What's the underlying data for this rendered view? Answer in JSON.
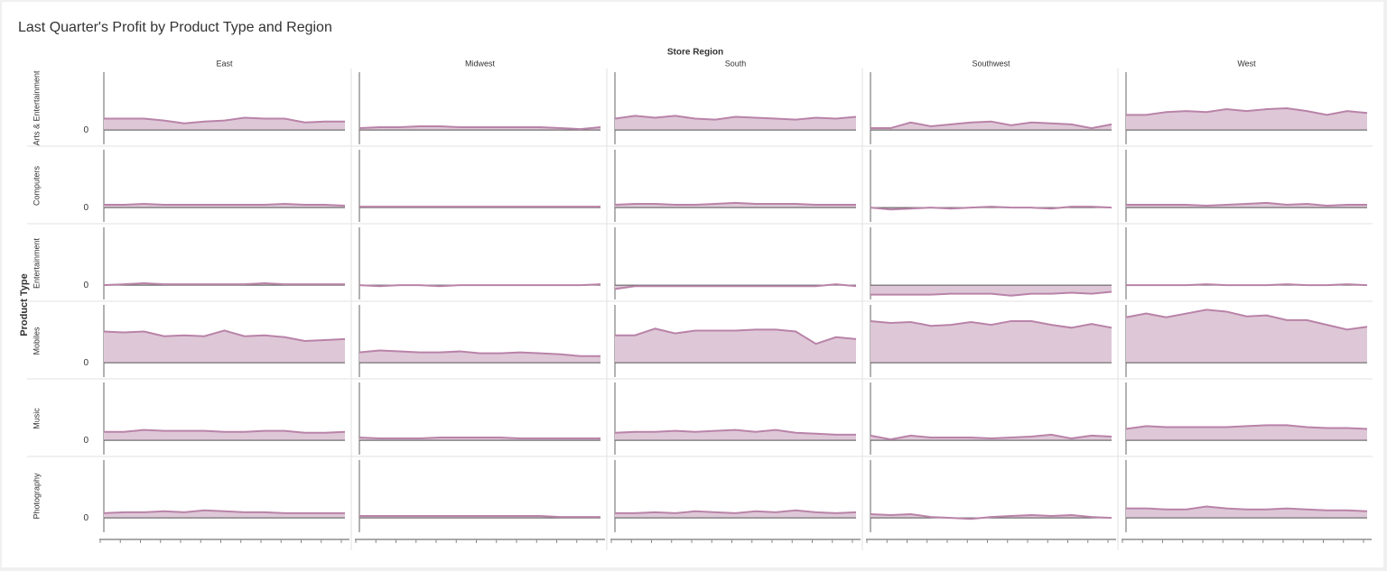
{
  "chart_data": {
    "type": "area",
    "title": "Last Quarter's Profit by Product Type and Region",
    "column_title": "Store Region",
    "row_title": "Product Type",
    "columns": [
      "East",
      "Midwest",
      "South",
      "Southwest",
      "West"
    ],
    "rows": [
      "Arts & Entertainment",
      "Computers",
      "Entertainment",
      "Mobiles",
      "Music",
      "Photography"
    ],
    "categories": [
      null,
      null,
      null,
      null,
      null,
      null,
      null,
      null,
      null,
      null,
      null,
      null,
      null
    ],
    "color": "#b983a8",
    "fill": "#dec8d7",
    "ylim": [
      -17,
      63
    ],
    "yticks": [
      0
    ],
    "values": [
      [
        [
          12,
          12,
          12,
          10,
          7,
          9,
          10,
          13,
          12,
          12,
          8,
          9,
          9
        ],
        [
          2,
          3,
          3,
          4,
          4,
          3,
          3,
          3,
          3,
          3,
          2,
          1,
          3
        ],
        [
          12,
          15,
          13,
          15,
          12,
          11,
          14,
          13,
          12,
          11,
          13,
          12,
          14
        ],
        [
          2,
          2,
          8,
          4,
          6,
          8,
          9,
          5,
          8,
          7,
          6,
          2,
          6
        ],
        [
          16,
          16,
          19,
          20,
          19,
          22,
          20,
          22,
          23,
          20,
          16,
          20,
          18
        ]
      ],
      [
        [
          3,
          3,
          4,
          3,
          3,
          3,
          3,
          3,
          3,
          4,
          3,
          3,
          2
        ],
        [
          1,
          1,
          1,
          1,
          1,
          1,
          1,
          1,
          1,
          1,
          1,
          1,
          1
        ],
        [
          3,
          4,
          4,
          3,
          3,
          4,
          5,
          4,
          4,
          4,
          3,
          3,
          3
        ],
        [
          0,
          -2,
          -1,
          0,
          -1,
          0,
          1,
          0,
          0,
          -1,
          1,
          1,
          0
        ],
        [
          3,
          3,
          3,
          3,
          2,
          3,
          4,
          5,
          3,
          4,
          2,
          3,
          3
        ]
      ],
      [
        [
          0,
          1,
          2,
          1,
          1,
          1,
          1,
          1,
          2,
          1,
          1,
          1,
          1
        ],
        [
          0,
          -1,
          0,
          0,
          -1,
          0,
          0,
          0,
          0,
          0,
          0,
          0,
          1
        ],
        [
          -4,
          -1,
          -1,
          -1,
          -1,
          -1,
          -1,
          -1,
          -1,
          -1,
          -1,
          1,
          -1
        ],
        [
          -10,
          -10,
          -10,
          -10,
          -9,
          -9,
          -9,
          -11,
          -9,
          -9,
          -8,
          -9,
          -7
        ],
        [
          0,
          0,
          0,
          0,
          1,
          0,
          0,
          0,
          1,
          0,
          0,
          1,
          0
        ]
      ],
      [
        [
          33,
          32,
          33,
          28,
          29,
          28,
          34,
          28,
          29,
          27,
          23,
          24,
          25
        ],
        [
          11,
          13,
          12,
          11,
          11,
          12,
          10,
          10,
          11,
          10,
          9,
          7,
          7
        ],
        [
          29,
          29,
          36,
          31,
          34,
          34,
          34,
          35,
          35,
          33,
          20,
          27,
          25
        ],
        [
          44,
          42,
          43,
          39,
          40,
          43,
          40,
          44,
          44,
          40,
          37,
          41,
          37
        ],
        [
          48,
          52,
          48,
          52,
          56,
          54,
          49,
          50,
          45,
          45,
          40,
          35,
          38
        ]
      ],
      [
        [
          9,
          9,
          11,
          10,
          10,
          10,
          9,
          9,
          10,
          10,
          8,
          8,
          9
        ],
        [
          3,
          2,
          2,
          2,
          3,
          3,
          3,
          3,
          2,
          2,
          2,
          2,
          2
        ],
        [
          8,
          9,
          9,
          10,
          9,
          10,
          11,
          9,
          11,
          8,
          7,
          6,
          6
        ],
        [
          5,
          1,
          5,
          3,
          3,
          3,
          2,
          3,
          4,
          6,
          2,
          5,
          4
        ],
        [
          12,
          15,
          14,
          14,
          14,
          14,
          15,
          16,
          16,
          14,
          13,
          13,
          12
        ]
      ],
      [
        [
          5,
          6,
          6,
          7,
          6,
          8,
          7,
          6,
          6,
          5,
          5,
          5,
          5
        ],
        [
          2,
          2,
          2,
          2,
          2,
          2,
          2,
          2,
          2,
          2,
          1,
          1,
          1
        ],
        [
          5,
          5,
          6,
          5,
          7,
          6,
          5,
          7,
          6,
          8,
          6,
          5,
          6
        ],
        [
          4,
          3,
          4,
          1,
          0,
          -1,
          1,
          2,
          3,
          2,
          3,
          1,
          0
        ],
        [
          10,
          10,
          9,
          9,
          12,
          10,
          9,
          9,
          10,
          9,
          8,
          8,
          7
        ]
      ]
    ]
  }
}
